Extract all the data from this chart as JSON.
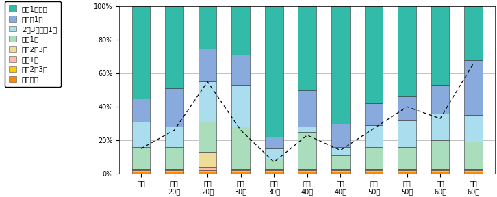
{
  "categories": [
    "全体",
    "男性\n20代",
    "女性\n20代",
    "男性\n30代",
    "女性\n30代",
    "男性\n40代",
    "女性\n40代",
    "男性\n50代",
    "女性\n50代",
    "男性\n60代",
    "女性\n60代"
  ],
  "legend_labels_top_to_bottom": [
    "年に1回以下",
    "半年に1回",
    "2～3カ月に1回",
    "月に1回",
    "月に2～3回",
    "週に1回",
    "週に2～3回",
    "ほぼ毎日"
  ],
  "colors_top_to_bottom": [
    "#33BBAA",
    "#88AADD",
    "#AADDEE",
    "#AADDBB",
    "#EEDD99",
    "#FFBBAA",
    "#FFCC00",
    "#FF8800"
  ],
  "segments_bottom_to_top": [
    [
      1,
      1,
      1,
      1,
      1,
      1,
      1,
      1,
      1,
      1,
      1
    ],
    [
      1,
      1,
      1,
      1,
      1,
      1,
      1,
      1,
      1,
      1,
      1
    ],
    [
      1,
      1,
      2,
      1,
      1,
      1,
      1,
      1,
      1,
      1,
      1
    ],
    [
      0,
      0,
      9,
      0,
      0,
      0,
      0,
      0,
      0,
      0,
      0
    ],
    [
      13,
      13,
      18,
      25,
      6,
      22,
      8,
      13,
      13,
      17,
      16
    ],
    [
      15,
      12,
      24,
      25,
      6,
      3,
      5,
      13,
      16,
      16,
      16
    ],
    [
      14,
      23,
      20,
      18,
      7,
      22,
      14,
      13,
      14,
      17,
      33
    ],
    [
      55,
      49,
      25,
      29,
      78,
      50,
      70,
      58,
      55,
      47,
      32
    ]
  ],
  "colors_bottom_to_top": [
    "#FF8800",
    "#FFCC00",
    "#FFBBAA",
    "#EEDD99",
    "#AADDBB",
    "#AADDEE",
    "#88AADD",
    "#33BBAA"
  ],
  "dashed_line_vals": [
    15,
    26,
    55,
    26,
    7,
    23,
    14,
    27,
    40,
    33,
    66
  ],
  "ylim": [
    0,
    100
  ],
  "yticks": [
    0,
    20,
    40,
    60,
    80,
    100
  ],
  "ytick_labels": [
    "0%",
    "20%",
    "40%",
    "60%",
    "80%",
    "100%"
  ],
  "figsize": [
    7.26,
    2.88
  ],
  "dpi": 100,
  "bar_width": 0.55,
  "legend_fontsize": 7.5,
  "tick_fontsize": 7
}
